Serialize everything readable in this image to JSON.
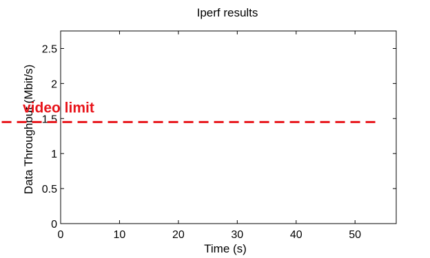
{
  "chart_data": {
    "type": "line",
    "title": "Iperf results",
    "xlabel": "Time (s)",
    "ylabel": "Data Throughput (Mbit/s)",
    "xlim": [
      0,
      57
    ],
    "ylim": [
      0,
      2.75
    ],
    "x_ticks": [
      0,
      10,
      20,
      30,
      40,
      50
    ],
    "x_tick_labels": [
      "0",
      "10",
      "20",
      "30",
      "40",
      "50"
    ],
    "y_ticks": [
      0,
      0.5,
      1,
      1.5,
      2,
      2.5
    ],
    "y_tick_labels": [
      "0",
      "0.5",
      "1",
      "1.5",
      "2",
      "2.5"
    ],
    "grid": false,
    "series": [],
    "annotations": [
      {
        "type": "hline",
        "label": "video limit",
        "y": 1.45,
        "x_start": -10,
        "x_end": 53.5,
        "color": "#e8141a",
        "style": "dashed"
      }
    ]
  }
}
